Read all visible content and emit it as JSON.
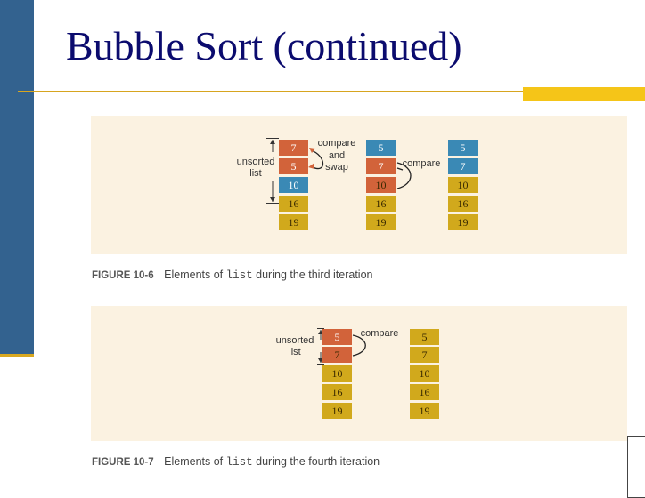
{
  "slide": {
    "title": "Bubble Sort (continued)"
  },
  "figure1": {
    "labels": {
      "unsorted_list": [
        "unsorted",
        "list"
      ],
      "compare_and_swap": [
        "compare",
        "and",
        "swap"
      ],
      "compare": "compare"
    },
    "columns": [
      [
        "7",
        "5",
        "10",
        "16",
        "19"
      ],
      [
        "5",
        "7",
        "10",
        "16",
        "19"
      ],
      [
        "5",
        "7",
        "10",
        "16",
        "19"
      ]
    ],
    "caption": {
      "fig_label": "FIGURE 10-6",
      "text_before": "Elements of",
      "code": "list",
      "text_after": "during the third iteration"
    }
  },
  "figure2": {
    "labels": {
      "unsorted_list": [
        "unsorted",
        "list"
      ],
      "compare": "compare"
    },
    "columns": [
      [
        "5",
        "7",
        "10",
        "16",
        "19"
      ],
      [
        "5",
        "7",
        "10",
        "16",
        "19"
      ]
    ],
    "caption": {
      "fig_label": "FIGURE 10-7",
      "text_before": "Elements of",
      "code": "list",
      "text_after": "during the fourth iteration"
    }
  },
  "colors": {
    "sidebar": "#33628f",
    "title_text": "#0b0b6e",
    "rule": "#d7a51f",
    "panel": "#fbf2e1",
    "cell_orange": "#d2633a",
    "cell_blue": "#3a89b5",
    "cell_gold": "#d1a91c"
  }
}
